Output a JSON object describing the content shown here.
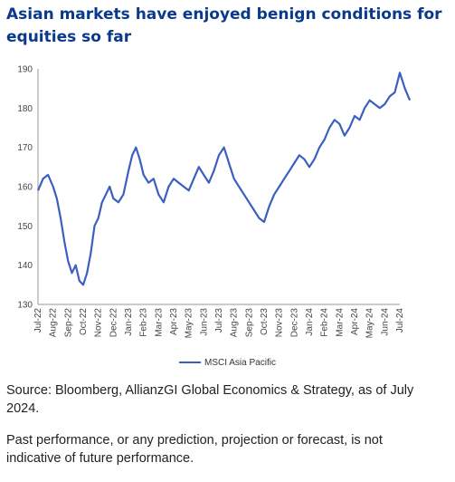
{
  "title": "Asian markets have enjoyed benign conditions for equities so far",
  "source": "Source: Bloomberg, AllianzGI Global Economics & Strategy, as of July 2024.",
  "disclaimer": "Past performance, or any prediction, projection or forecast, is not indicative of future performance.",
  "chart_data": {
    "type": "line",
    "ylim": [
      130,
      190
    ],
    "yticks": [
      130,
      140,
      150,
      160,
      170,
      180,
      190
    ],
    "xticks": [
      "Jul-22",
      "Aug-22",
      "Sep-22",
      "Oct-22",
      "Nov-22",
      "Dec-22",
      "Jan-23",
      "Feb-23",
      "Mar-23",
      "Apr-23",
      "May-23",
      "Jun-23",
      "Jul-23",
      "Aug-23",
      "Sep-23",
      "Oct-23",
      "Nov-23",
      "Dec-23",
      "Jan-24",
      "Feb-24",
      "Mar-24",
      "Apr-24",
      "May-24",
      "Jun-24",
      "Jul-24"
    ],
    "grid": false,
    "legend_position": "bottom",
    "series": [
      {
        "name": "MSCI Asia Pacific",
        "color": "#3b5fc0",
        "x": [
          "Jul-22",
          "Jul-22",
          "Jul-22",
          "Aug-22",
          "Aug-22",
          "Aug-22",
          "Aug-22",
          "Sep-22",
          "Sep-22",
          "Sep-22",
          "Sep-22",
          "Oct-22",
          "Oct-22",
          "Oct-22",
          "Oct-22",
          "Nov-22",
          "Nov-22",
          "Nov-22",
          "Nov-22",
          "Dec-22",
          "Dec-22",
          "Dec-22",
          "Jan-23",
          "Jan-23",
          "Jan-23",
          "Jan-23",
          "Feb-23",
          "Feb-23",
          "Feb-23",
          "Mar-23",
          "Mar-23",
          "Mar-23",
          "Apr-23",
          "Apr-23",
          "Apr-23",
          "May-23",
          "May-23",
          "May-23",
          "Jun-23",
          "Jun-23",
          "Jun-23",
          "Jul-23",
          "Jul-23",
          "Jul-23",
          "Aug-23",
          "Aug-23",
          "Aug-23",
          "Sep-23",
          "Sep-23",
          "Sep-23",
          "Oct-23",
          "Oct-23",
          "Oct-23",
          "Nov-23",
          "Nov-23",
          "Nov-23",
          "Dec-23",
          "Dec-23",
          "Dec-23",
          "Jan-24",
          "Jan-24",
          "Jan-24",
          "Feb-24",
          "Feb-24",
          "Feb-24",
          "Mar-24",
          "Mar-24",
          "Mar-24",
          "Apr-24",
          "Apr-24",
          "Apr-24",
          "May-24",
          "May-24",
          "May-24",
          "Jun-24",
          "Jun-24",
          "Jun-24",
          "Jul-24",
          "Jul-24",
          "Jul-24"
        ],
        "values": [
          159,
          162,
          163,
          160,
          157,
          152,
          146,
          141,
          138,
          140,
          136,
          135,
          138,
          143,
          150,
          152,
          156,
          158,
          160,
          157,
          156,
          158,
          164,
          168,
          170,
          167,
          163,
          161,
          162,
          158,
          156,
          160,
          162,
          161,
          160,
          159,
          162,
          165,
          163,
          161,
          164,
          168,
          170,
          166,
          162,
          160,
          158,
          156,
          154,
          152,
          151,
          155,
          158,
          160,
          162,
          164,
          166,
          168,
          167,
          165,
          167,
          170,
          172,
          175,
          177,
          176,
          173,
          175,
          178,
          177,
          180,
          182,
          181,
          180,
          181,
          183,
          184,
          189,
          185,
          182
        ]
      }
    ]
  }
}
